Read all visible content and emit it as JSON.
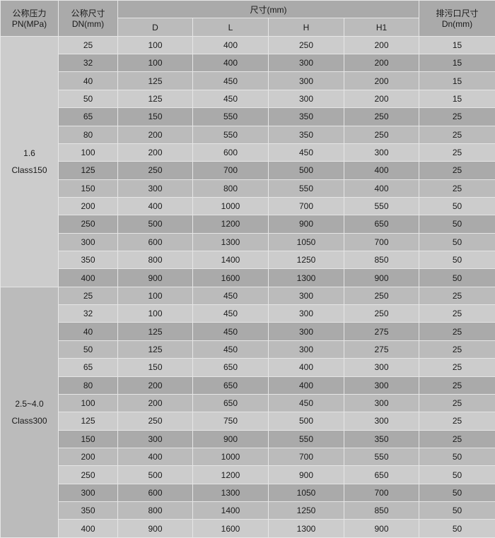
{
  "header": {
    "pn": "公称压力",
    "pn_unit": "PN(MPa)",
    "dn": "公称尺寸",
    "dn_unit": "DN(mm)",
    "size": "尺寸(mm)",
    "drain": "排污口尺寸",
    "drain_unit": "Dn(mm)",
    "cols": [
      "D",
      "L",
      "H",
      "H1"
    ]
  },
  "groups": [
    {
      "pn": "1.6",
      "cls": "Class150",
      "rows": [
        [
          "25",
          "100",
          "400",
          "250",
          "200",
          "15"
        ],
        [
          "32",
          "100",
          "400",
          "300",
          "200",
          "15"
        ],
        [
          "40",
          "125",
          "450",
          "300",
          "200",
          "15"
        ],
        [
          "50",
          "125",
          "450",
          "300",
          "200",
          "15"
        ],
        [
          "65",
          "150",
          "550",
          "350",
          "250",
          "25"
        ],
        [
          "80",
          "200",
          "550",
          "350",
          "250",
          "25"
        ],
        [
          "100",
          "200",
          "600",
          "450",
          "300",
          "25"
        ],
        [
          "125",
          "250",
          "700",
          "500",
          "400",
          "25"
        ],
        [
          "150",
          "300",
          "800",
          "550",
          "400",
          "25"
        ],
        [
          "200",
          "400",
          "1000",
          "700",
          "550",
          "50"
        ],
        [
          "250",
          "500",
          "1200",
          "900",
          "650",
          "50"
        ],
        [
          "300",
          "600",
          "1300",
          "1050",
          "700",
          "50"
        ],
        [
          "350",
          "800",
          "1400",
          "1250",
          "850",
          "50"
        ],
        [
          "400",
          "900",
          "1600",
          "1300",
          "900",
          "50"
        ]
      ]
    },
    {
      "pn": "2.5~4.0",
      "cls": "Class300",
      "rows": [
        [
          "25",
          "100",
          "450",
          "300",
          "250",
          "25"
        ],
        [
          "32",
          "100",
          "450",
          "300",
          "250",
          "25"
        ],
        [
          "40",
          "125",
          "450",
          "300",
          "275",
          "25"
        ],
        [
          "50",
          "125",
          "450",
          "300",
          "275",
          "25"
        ],
        [
          "65",
          "150",
          "650",
          "400",
          "300",
          "25"
        ],
        [
          "80",
          "200",
          "650",
          "400",
          "300",
          "25"
        ],
        [
          "100",
          "200",
          "650",
          "450",
          "300",
          "25"
        ],
        [
          "125",
          "250",
          "750",
          "500",
          "300",
          "25"
        ],
        [
          "150",
          "300",
          "900",
          "550",
          "350",
          "25"
        ],
        [
          "200",
          "400",
          "1000",
          "700",
          "550",
          "50"
        ],
        [
          "250",
          "500",
          "1200",
          "900",
          "650",
          "50"
        ],
        [
          "300",
          "600",
          "1300",
          "1050",
          "700",
          "50"
        ],
        [
          "350",
          "800",
          "1400",
          "1250",
          "850",
          "50"
        ],
        [
          "400",
          "900",
          "1600",
          "1300",
          "900",
          "50"
        ]
      ]
    }
  ]
}
